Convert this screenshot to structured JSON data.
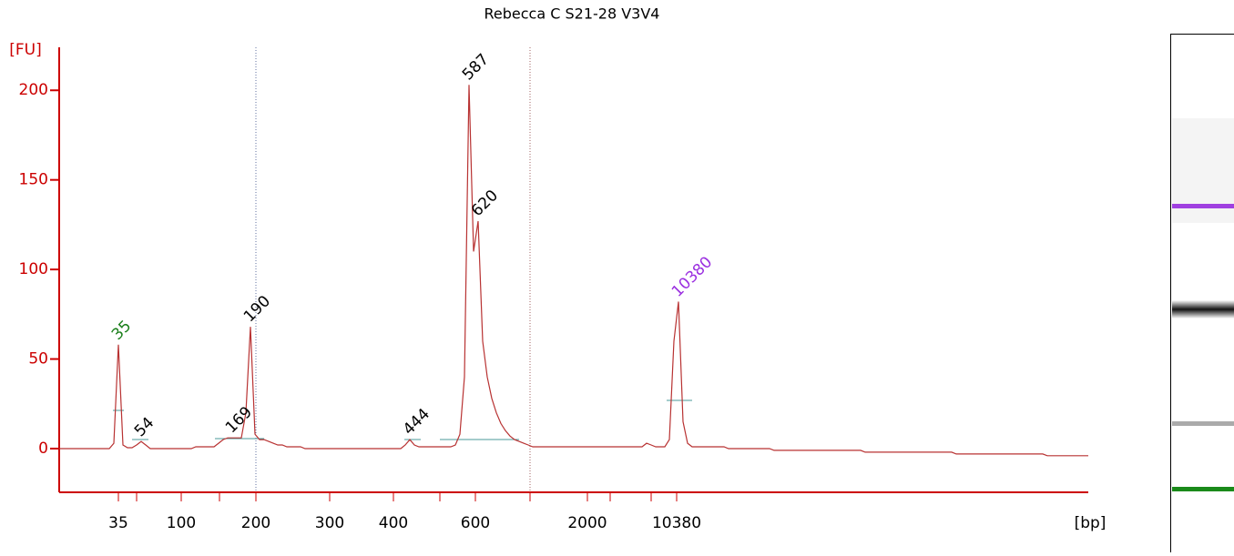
{
  "chart_data": {
    "type": "line",
    "title": "Rebecca C S21-28 V3V4",
    "y_label": "[FU]",
    "x_label": "[bp]",
    "ylim": [
      -24.4,
      224
    ],
    "yticks": [
      0,
      50,
      100,
      150,
      200
    ],
    "x_tick_labels": [
      "35",
      "100",
      "200",
      "300",
      "400",
      "600",
      "2000",
      "10380"
    ],
    "axis_color": "#cc0000",
    "series": [
      {
        "color": "#b83232",
        "values": [
          0,
          0,
          0,
          0,
          0,
          0,
          0,
          0,
          0,
          0,
          0,
          0,
          3,
          58,
          2,
          0.5,
          0.5,
          2,
          4,
          2,
          0,
          0,
          0,
          0,
          0,
          0,
          0,
          0,
          0,
          0,
          1,
          1,
          1,
          1,
          1,
          3,
          5,
          6,
          6,
          6,
          6,
          20,
          68,
          8,
          5,
          5,
          4,
          3,
          2,
          2,
          1,
          1,
          1,
          1,
          0,
          0,
          0,
          0,
          0,
          0,
          0,
          0,
          0,
          0,
          0,
          0,
          0,
          0,
          0,
          0,
          0,
          0,
          0,
          0,
          0,
          0,
          2,
          5,
          2,
          1,
          1,
          1,
          1,
          1,
          1,
          1,
          1,
          2,
          8,
          40,
          203,
          110,
          127,
          60,
          40,
          28,
          20,
          14,
          10,
          7,
          5,
          4,
          3,
          2,
          1,
          1,
          1,
          1,
          1,
          1,
          1,
          1,
          1,
          1,
          1,
          1,
          1,
          1,
          1,
          1,
          1,
          1,
          1,
          1,
          1,
          1,
          1,
          1,
          1,
          3,
          2,
          1,
          1,
          1,
          5,
          60,
          82,
          15,
          3,
          1,
          1,
          1,
          1,
          1,
          1,
          1,
          1,
          0,
          0,
          0,
          0,
          0,
          0,
          0,
          0,
          0,
          0,
          -1,
          -1,
          -1,
          -1,
          -1,
          -1,
          -1,
          -1,
          -1,
          -1,
          -1,
          -1,
          -1,
          -1,
          -1,
          -1,
          -1,
          -1,
          -1,
          -1,
          -2,
          -2,
          -2,
          -2,
          -2,
          -2,
          -2,
          -2,
          -2,
          -2,
          -2,
          -2,
          -2,
          -2,
          -2,
          -2,
          -2,
          -2,
          -2,
          -2,
          -3,
          -3,
          -3,
          -3,
          -3,
          -3,
          -3,
          -3,
          -3,
          -3,
          -3,
          -3,
          -3,
          -3,
          -3,
          -3,
          -3,
          -3,
          -3,
          -3,
          -4,
          -4,
          -4,
          -4,
          -4,
          -4,
          -4,
          -4,
          -4,
          -4
        ]
      }
    ],
    "peak_labels": [
      {
        "label": "35",
        "color": "#1a7f1a"
      },
      {
        "label": "54",
        "color": "#000000"
      },
      {
        "label": "169",
        "color": "#000000"
      },
      {
        "label": "190",
        "color": "#000000"
      },
      {
        "label": "444",
        "color": "#000000"
      },
      {
        "label": "587",
        "color": "#000000"
      },
      {
        "label": "620",
        "color": "#000000"
      },
      {
        "label": "10380",
        "color": "#9b30e0"
      }
    ]
  }
}
